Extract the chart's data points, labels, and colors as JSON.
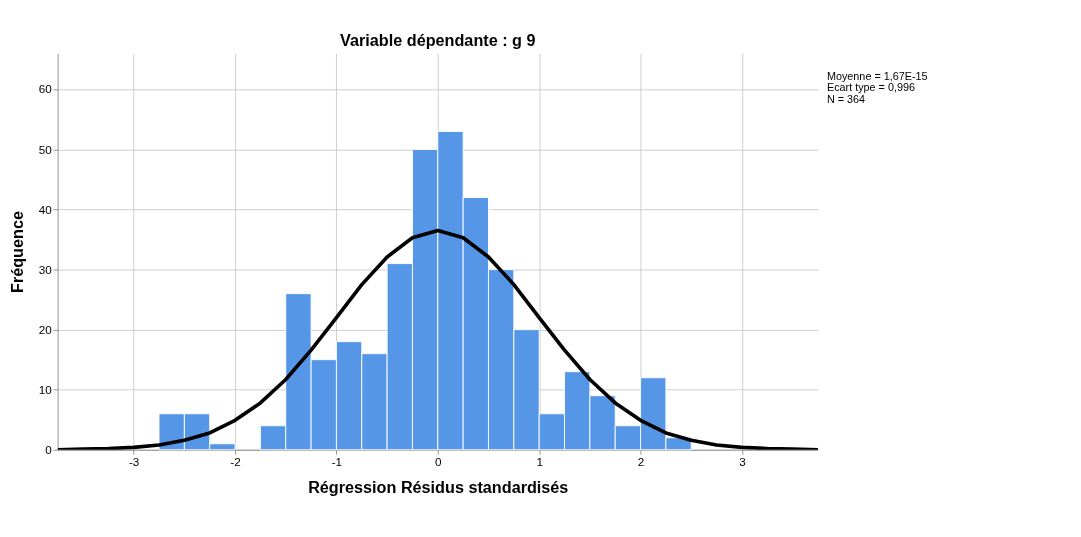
{
  "chart_data": {
    "type": "histogram",
    "title": "Variable dépendante : g 9",
    "xlabel": "Régression Résidus standardisés",
    "ylabel": "Fréquence",
    "bins": [
      -2.75,
      -2.5,
      -2.25,
      -2,
      -1.75,
      -1.5,
      -1.25,
      -1,
      -0.75,
      -0.5,
      -0.25,
      0,
      0.25,
      0.5,
      0.75,
      1,
      1.25,
      1.5,
      1.75,
      2,
      2.25,
      2.5
    ],
    "values": [
      6,
      6,
      1,
      0,
      4,
      26,
      15,
      18,
      16,
      31,
      50,
      53,
      42,
      30,
      20,
      6,
      13,
      9,
      4,
      12,
      2
    ],
    "color": "#5596e6",
    "series": [
      {
        "type": "line",
        "color": "#000000",
        "x": [
          -3.75,
          -3.5,
          -3.25,
          -3,
          -2.75,
          -2.5,
          -2.25,
          -2,
          -1.75,
          -1.5,
          -1.25,
          -1,
          -0.75,
          -0.5,
          -0.25,
          0,
          0.25,
          0.5,
          0.75,
          1,
          1.25,
          1.5,
          1.75,
          2,
          2.25,
          2.5,
          2.75,
          3,
          3.25,
          3.5,
          3.75
        ],
        "values": [
          0.0,
          0.1,
          0.2,
          0.4,
          0.8,
          1.6,
          2.8,
          4.9,
          7.8,
          11.7,
          16.6,
          22.0,
          27.5,
          32.1,
          35.3,
          36.5,
          35.3,
          32.1,
          27.5,
          22.0,
          16.6,
          11.7,
          7.8,
          4.9,
          2.8,
          1.6,
          0.8,
          0.4,
          0.2,
          0.1,
          0.0
        ]
      }
    ],
    "xlim": [
      -3.75,
      3.75
    ],
    "xticks": [
      -3,
      -2,
      -1,
      0,
      1,
      2,
      3
    ],
    "ylim": [
      0,
      66
    ],
    "yticks": [
      0,
      10,
      20,
      30,
      40,
      50,
      60
    ],
    "grid": true,
    "annotations": [
      "Moyenne = 1,67E-15",
      "Ecart type = 0,996",
      "N = 364"
    ]
  }
}
